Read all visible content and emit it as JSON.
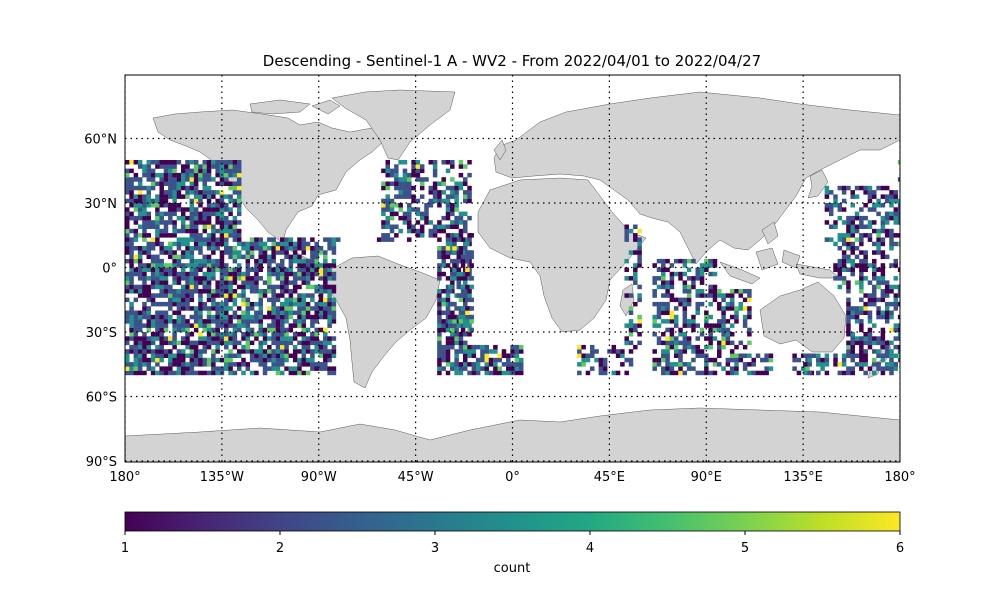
{
  "figure": {
    "title": "Descending - Sentinel-1 A - WV2 - From 2022/04/01 to 2022/04/27"
  },
  "map": {
    "projection": "plate-carree",
    "extent": {
      "lon": [
        -180,
        180
      ],
      "lat": [
        -90,
        90
      ]
    },
    "gridlines": "dotted",
    "land_color": "#d3d3d3",
    "ocean_color": "#ffffff",
    "lat_ticks": [
      {
        "value": 60,
        "label": "60°N"
      },
      {
        "value": 30,
        "label": "30°N"
      },
      {
        "value": 0,
        "label": "0°"
      },
      {
        "value": -30,
        "label": "30°S"
      },
      {
        "value": -60,
        "label": "60°S"
      },
      {
        "value": -90,
        "label": "90°S"
      }
    ],
    "lon_ticks": [
      {
        "value": -180,
        "label": "180°"
      },
      {
        "value": -135,
        "label": "135°W"
      },
      {
        "value": -90,
        "label": "90°W"
      },
      {
        "value": -45,
        "label": "45°W"
      },
      {
        "value": 0,
        "label": "0°"
      },
      {
        "value": 45,
        "label": "45°E"
      },
      {
        "value": 90,
        "label": "90°E"
      },
      {
        "value": 135,
        "label": "135°E"
      },
      {
        "value": 180,
        "label": "180°"
      }
    ]
  },
  "chart_data": {
    "type": "heatmap",
    "colormap": "viridis",
    "value_range": [
      1,
      6
    ],
    "lat_range_of_data": [
      -50,
      50
    ],
    "colorbar": {
      "label": "count",
      "ticks": [
        "1",
        "2",
        "3",
        "4",
        "5",
        "6"
      ]
    }
  }
}
